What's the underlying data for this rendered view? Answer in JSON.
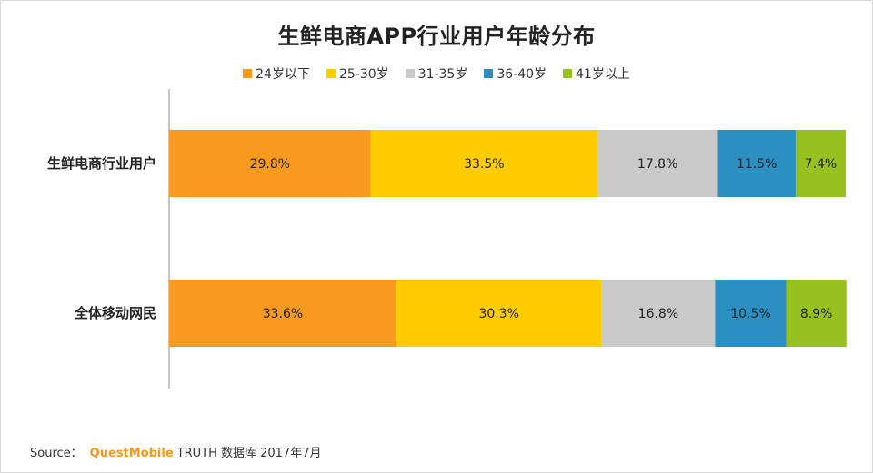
{
  "chart_data": {
    "type": "bar",
    "orientation": "horizontal",
    "stacked": true,
    "title": "生鲜电商APP行业用户年龄分布",
    "categories": [
      "生鲜电商行业用户",
      "全体移动网民"
    ],
    "series": [
      {
        "name": "24岁以下",
        "color": "#f79a1e",
        "values": [
          29.8,
          33.6
        ],
        "labels": [
          "29.8%",
          "33.6%"
        ]
      },
      {
        "name": "25-30岁",
        "color": "#ffcc00",
        "values": [
          33.5,
          30.3
        ],
        "labels": [
          "33.5%",
          "30.3%"
        ]
      },
      {
        "name": "31-35岁",
        "color": "#c9c9c9",
        "values": [
          17.8,
          16.8
        ],
        "labels": [
          "17.8%",
          "16.8%"
        ]
      },
      {
        "name": "36-40岁",
        "color": "#2b8fc1",
        "values": [
          11.5,
          10.5
        ],
        "labels": [
          "11.5%",
          "10.5%"
        ]
      },
      {
        "name": "41岁以上",
        "color": "#97c11f",
        "values": [
          7.4,
          8.9
        ],
        "labels": [
          "7.4%",
          "8.9%"
        ]
      }
    ],
    "xlim": [
      0,
      100
    ],
    "legend_position": "top",
    "grid": false
  },
  "footer": {
    "source_label": "Source：",
    "brand": "QuestMobile",
    "rest": "TRUTH 数据库 2017年7月"
  }
}
